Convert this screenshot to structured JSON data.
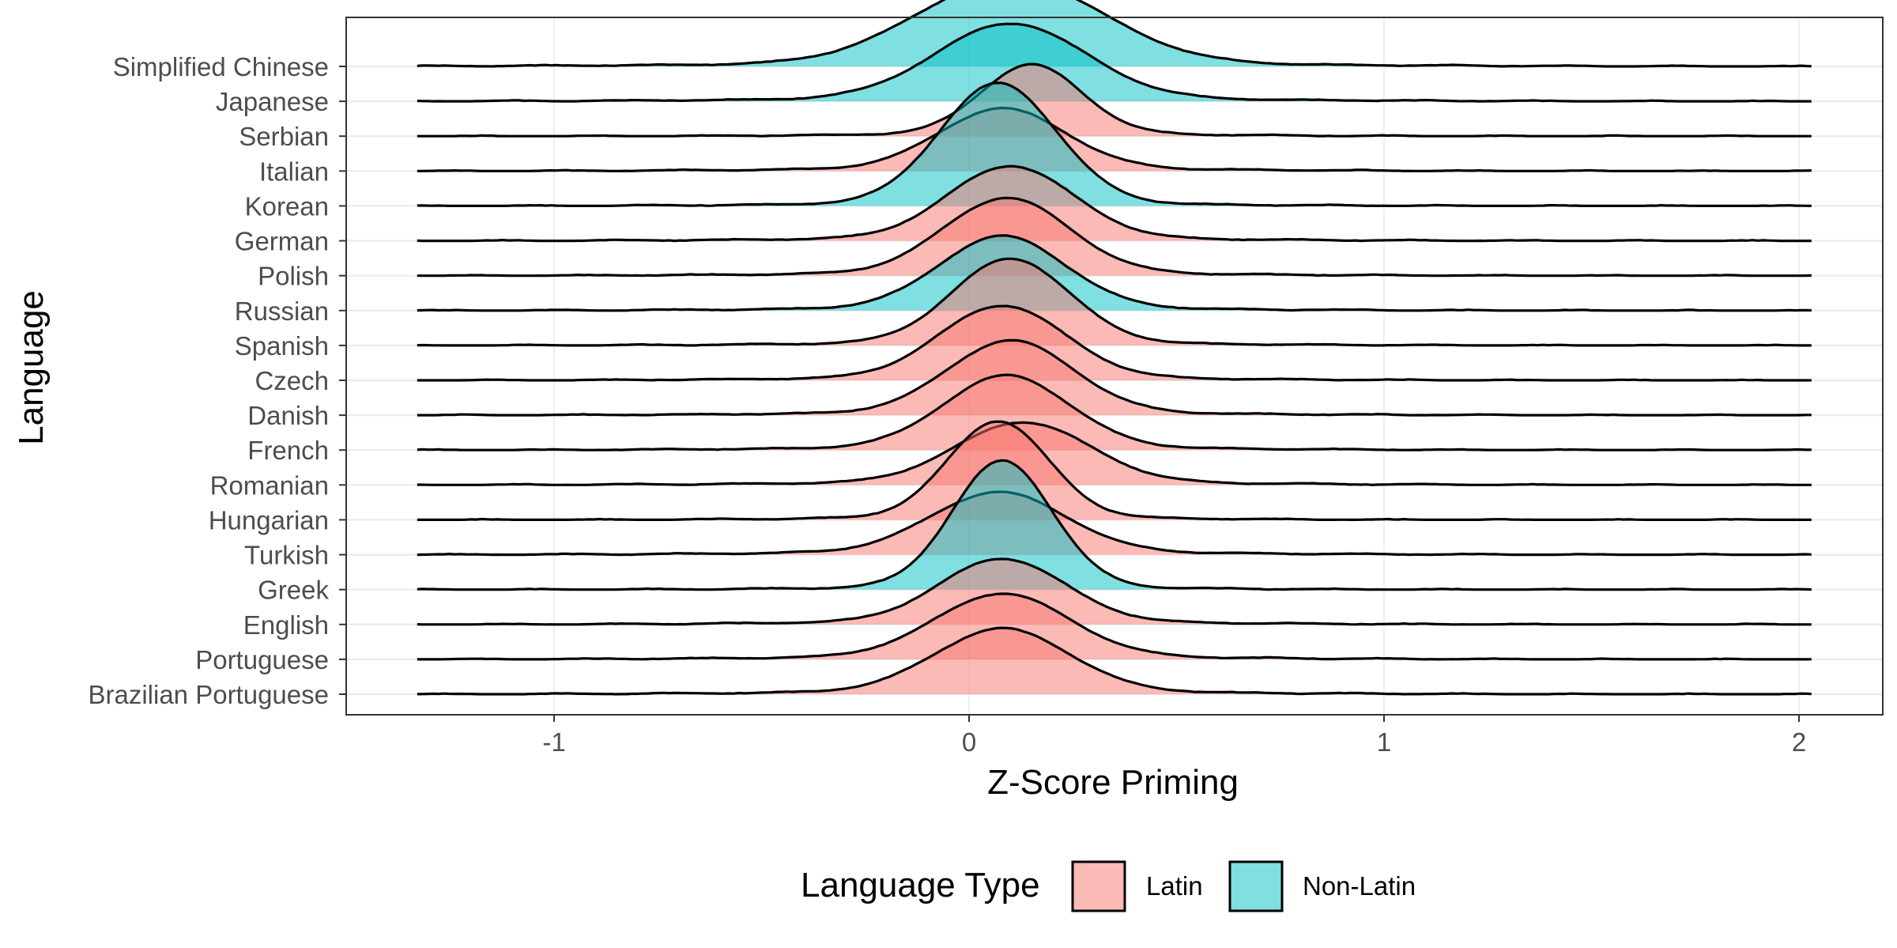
{
  "chart_data": {
    "type": "ridgeline",
    "xlabel": "Z-Score Priming",
    "ylabel": "Language",
    "xlim": [
      -1.5,
      2.2
    ],
    "x_ticks": [
      -1,
      0,
      1,
      2
    ],
    "x_tick_labels": [
      "-1",
      "0",
      "1",
      "2"
    ],
    "grid": true,
    "theme": "bw",
    "legend": {
      "title": "Language Type",
      "position": "bottom",
      "entries": [
        {
          "label": "Latin",
          "color": "#F8766D"
        },
        {
          "label": "Non-Latin",
          "color": "#00BFC4"
        }
      ]
    },
    "series": [
      {
        "name": "Simplified Chinese",
        "type": "Non-Latin",
        "peak_x": 0.1,
        "sd": 0.22,
        "height": 1.4
      },
      {
        "name": "Japanese",
        "type": "Non-Latin",
        "peak_x": 0.1,
        "sd": 0.18,
        "height": 1.25
      },
      {
        "name": "Serbian",
        "type": "Latin",
        "peak_x": 0.15,
        "sd": 0.12,
        "height": 1.15
      },
      {
        "name": "Italian",
        "type": "Latin",
        "peak_x": 0.08,
        "sd": 0.15,
        "height": 1.0
      },
      {
        "name": "Korean",
        "type": "Non-Latin",
        "peak_x": 0.07,
        "sd": 0.14,
        "height": 2.0
      },
      {
        "name": "German",
        "type": "Latin",
        "peak_x": 0.1,
        "sd": 0.15,
        "height": 1.2
      },
      {
        "name": "Polish",
        "type": "Latin",
        "peak_x": 0.09,
        "sd": 0.15,
        "height": 1.25
      },
      {
        "name": "Russian",
        "type": "Non-Latin",
        "peak_x": 0.08,
        "sd": 0.15,
        "height": 1.2
      },
      {
        "name": "Spanish",
        "type": "Latin",
        "peak_x": 0.1,
        "sd": 0.14,
        "height": 1.4
      },
      {
        "name": "Czech",
        "type": "Latin",
        "peak_x": 0.08,
        "sd": 0.15,
        "height": 1.2
      },
      {
        "name": "Danish",
        "type": "Latin",
        "peak_x": 0.1,
        "sd": 0.15,
        "height": 1.2
      },
      {
        "name": "French",
        "type": "Latin",
        "peak_x": 0.09,
        "sd": 0.15,
        "height": 1.2
      },
      {
        "name": "Romanian",
        "type": "Latin",
        "peak_x": 0.13,
        "sd": 0.16,
        "height": 1.0
      },
      {
        "name": "Hungarian",
        "type": "Latin",
        "peak_x": 0.07,
        "sd": 0.12,
        "height": 1.6
      },
      {
        "name": "Turkish",
        "type": "Latin",
        "peak_x": 0.07,
        "sd": 0.16,
        "height": 1.0
      },
      {
        "name": "Greek",
        "type": "Non-Latin",
        "peak_x": 0.08,
        "sd": 0.12,
        "height": 2.1
      },
      {
        "name": "English",
        "type": "Latin",
        "peak_x": 0.08,
        "sd": 0.15,
        "height": 1.05
      },
      {
        "name": "Portuguese",
        "type": "Latin",
        "peak_x": 0.08,
        "sd": 0.16,
        "height": 1.05
      },
      {
        "name": "Brazilian Portuguese",
        "type": "Latin",
        "peak_x": 0.08,
        "sd": 0.16,
        "height": 1.05
      }
    ],
    "density_range": [
      -1.33,
      2.03
    ]
  }
}
